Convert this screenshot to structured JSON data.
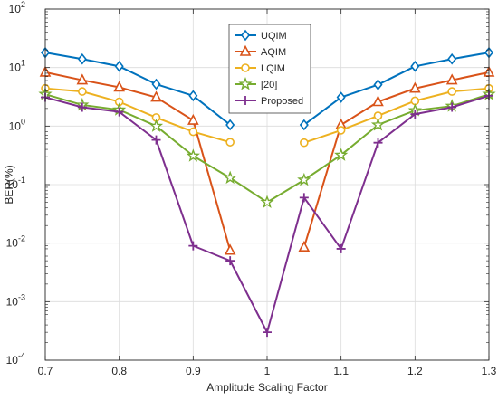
{
  "chart_data": {
    "type": "line",
    "title": "",
    "xlabel": "Amplitude Scaling Factor",
    "ylabel": "BER(%)",
    "xlim": [
      0.7,
      1.3
    ],
    "ylim": [
      0.0001,
      100
    ],
    "yscale": "log",
    "grid": true,
    "legend_position": "top-center",
    "x_ticks": [
      0.7,
      0.8,
      0.9,
      1.0,
      1.1,
      1.2,
      1.3
    ],
    "x_tick_labels": [
      "0.7",
      "0.8",
      "0.9",
      "1",
      "1.1",
      "1.2",
      "1.3"
    ],
    "y_tick_labels": [
      {
        "base": "10",
        "exp": "-4"
      },
      {
        "base": "10",
        "exp": "-3"
      },
      {
        "base": "10",
        "exp": "-2"
      },
      {
        "base": "10",
        "exp": "-1"
      },
      {
        "base": "10",
        "exp": "0"
      },
      {
        "base": "10",
        "exp": "1"
      },
      {
        "base": "10",
        "exp": "2"
      }
    ],
    "series": [
      {
        "name": "UQIM",
        "color": "#0072BD",
        "marker": "diamond",
        "segments": [
          {
            "x": [
              0.7,
              0.75,
              0.8,
              0.85,
              0.9,
              0.95
            ],
            "y": [
              18,
              14,
              10.5,
              5.2,
              3.3,
              1.05
            ]
          },
          {
            "x": [
              1.05,
              1.1,
              1.15,
              1.2,
              1.25,
              1.3
            ],
            "y": [
              1.05,
              3.1,
              5.1,
              10.5,
              14,
              18
            ]
          }
        ]
      },
      {
        "name": "AQIM",
        "color": "#D95319",
        "marker": "triangle",
        "segments": [
          {
            "x": [
              0.7,
              0.75,
              0.8,
              0.85,
              0.9,
              0.95
            ],
            "y": [
              8.3,
              6.1,
              4.6,
              3.1,
              1.25,
              0.0075
            ]
          },
          {
            "x": [
              1.05,
              1.1,
              1.15,
              1.2,
              1.25,
              1.3
            ],
            "y": [
              0.0085,
              1.05,
              2.6,
              4.4,
              6.1,
              8.3
            ]
          }
        ]
      },
      {
        "name": "LQIM",
        "color": "#EDB120",
        "marker": "circle",
        "segments": [
          {
            "x": [
              0.7,
              0.75,
              0.8,
              0.85,
              0.9,
              0.95
            ],
            "y": [
              4.4,
              3.9,
              2.6,
              1.4,
              0.8,
              0.53
            ]
          },
          {
            "x": [
              1.05,
              1.1,
              1.15,
              1.2,
              1.25,
              1.3
            ],
            "y": [
              0.52,
              0.85,
              1.5,
              2.7,
              3.9,
              4.4
            ]
          }
        ]
      },
      {
        "name": "[20]",
        "color": "#77AC30",
        "marker": "star",
        "segments": [
          {
            "x": [
              0.7,
              0.75,
              0.8,
              0.85,
              0.9,
              0.95,
              1.0,
              1.05,
              1.1,
              1.15,
              1.2,
              1.25,
              1.3
            ],
            "y": [
              3.5,
              2.3,
              1.9,
              1.0,
              0.31,
              0.13,
              0.05,
              0.12,
              0.32,
              1.05,
              1.85,
              2.2,
              3.5
            ]
          }
        ]
      },
      {
        "name": "Proposed",
        "color": "#7E2F8E",
        "marker": "plus",
        "segments": [
          {
            "x": [
              0.7,
              0.75,
              0.8,
              0.85,
              0.9,
              0.95,
              1.0,
              1.05,
              1.1,
              1.15,
              1.2,
              1.25,
              1.3
            ],
            "y": [
              3.1,
              2.1,
              1.75,
              0.58,
              0.009,
              0.005,
              0.0003,
              0.06,
              0.008,
              0.52,
              1.6,
              2.1,
              3.3
            ]
          }
        ]
      }
    ]
  }
}
